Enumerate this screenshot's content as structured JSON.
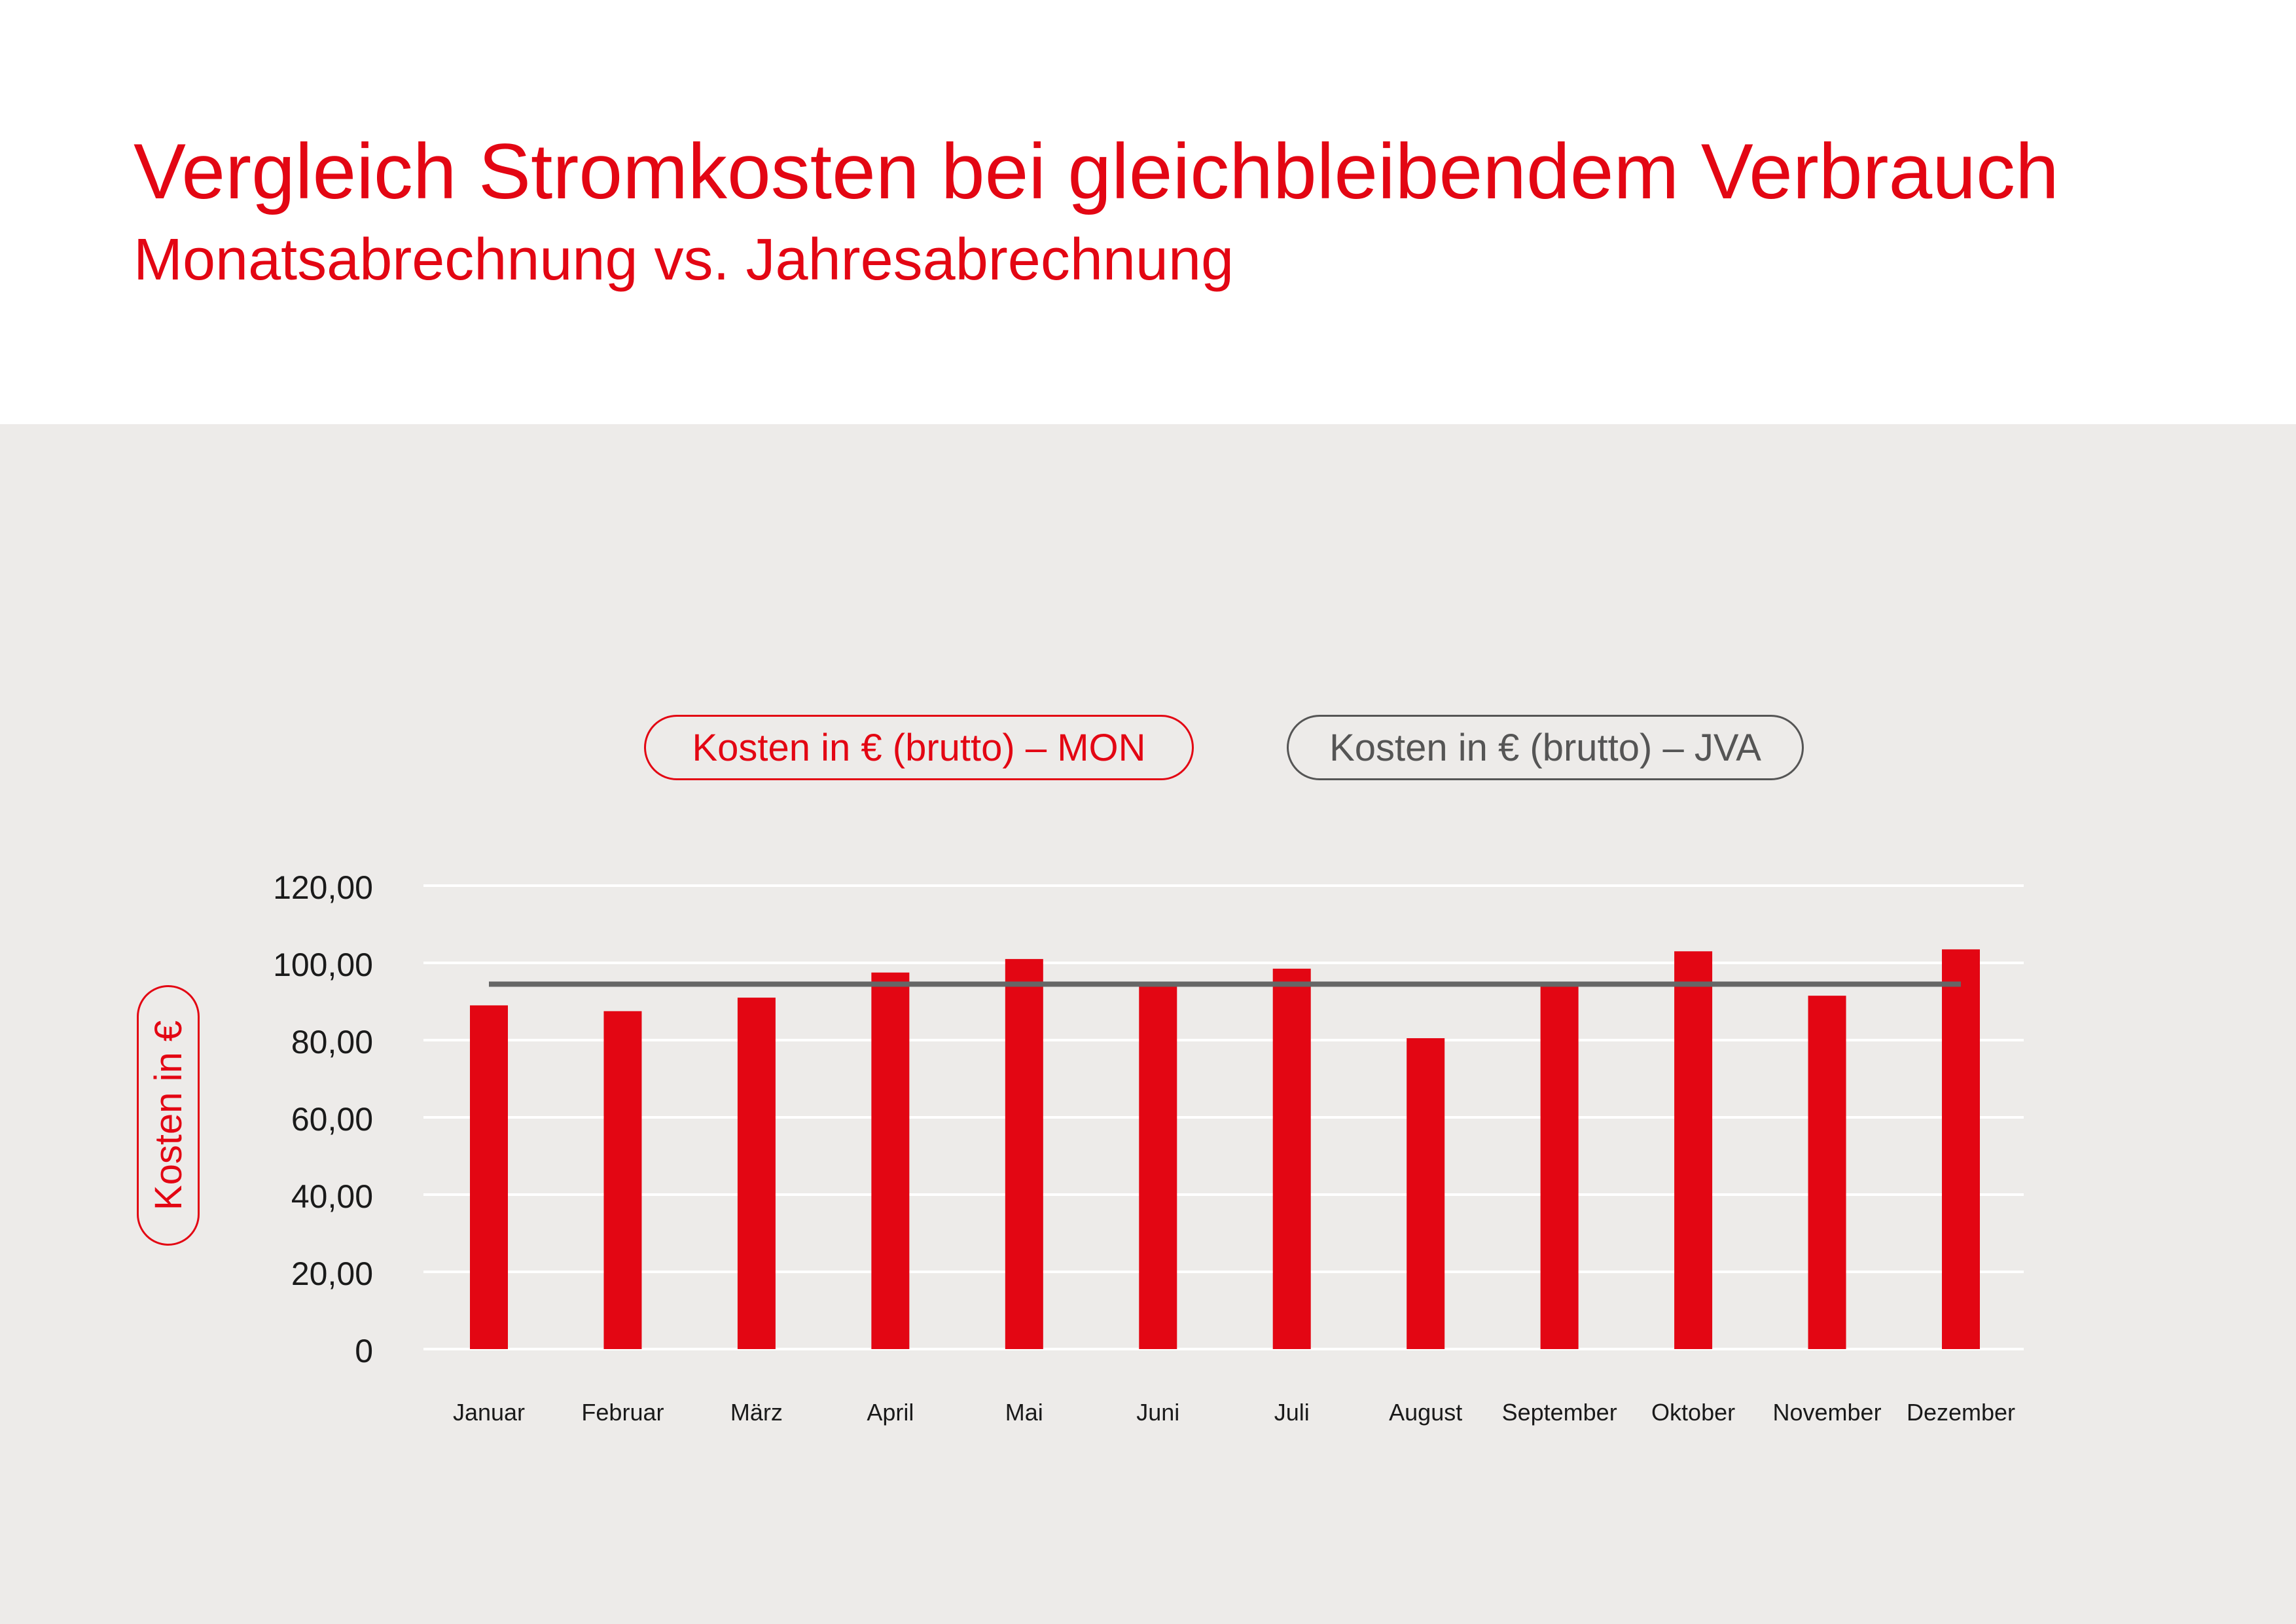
{
  "header": {
    "title": "Vergleich Stromkosten bei gleichbleibendem Verbrauch",
    "subtitle": "Monatsabrechnung vs. Jahresabrechnung"
  },
  "colors": {
    "accent": "#e30613",
    "jva_line": "#666666",
    "panel_bg": "#edebe9",
    "grid": "#ffffff"
  },
  "chart_data": {
    "type": "bar",
    "title": "Vergleich Stromkosten bei gleichbleibendem Verbrauch",
    "subtitle": "Monatsabrechnung vs. Jahresabrechnung",
    "ylabel": "Kosten in €",
    "xlabel": "",
    "ylim": [
      0,
      120
    ],
    "yticks": [
      "0",
      "20,00",
      "40,00",
      "60,00",
      "80,00",
      "100,00",
      "120,00"
    ],
    "grid": true,
    "legend_position": "top-center",
    "categories": [
      "Januar",
      "Februar",
      "März",
      "April",
      "Mai",
      "Juni",
      "Juli",
      "August",
      "September",
      "Oktober",
      "November",
      "Dezember"
    ],
    "series": [
      {
        "name": "Kosten in € (brutto) – MON",
        "kind": "bar",
        "color": "#e30613",
        "values": [
          89,
          87.5,
          91,
          97.5,
          101,
          94,
          98.5,
          80.5,
          94,
          103,
          91.5,
          103.5
        ]
      },
      {
        "name": "Kosten in € (brutto) – JVA",
        "kind": "line",
        "color": "#666666",
        "values": [
          94.5,
          94.5,
          94.5,
          94.5,
          94.5,
          94.5,
          94.5,
          94.5,
          94.5,
          94.5,
          94.5,
          94.5
        ]
      }
    ]
  }
}
